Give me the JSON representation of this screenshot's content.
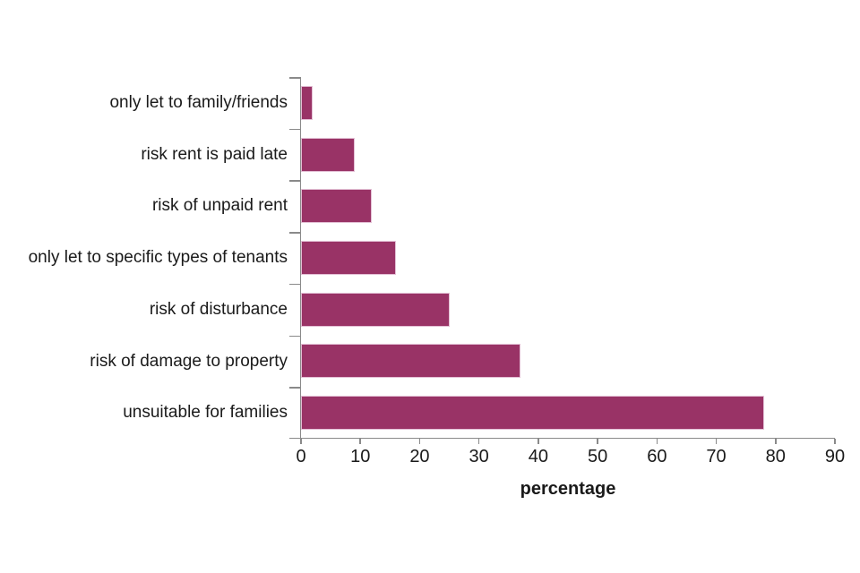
{
  "chart_data": {
    "type": "bar",
    "orientation": "horizontal",
    "title": "",
    "xlabel": "percentage",
    "ylabel": "",
    "categories": [
      "only let to family/friends",
      "risk rent is paid late",
      "risk of unpaid rent",
      "only let to specific types of tenants",
      "risk of disturbance",
      "risk of damage to property",
      "unsuitable for families"
    ],
    "values": [
      2,
      9,
      12,
      16,
      25,
      37,
      78
    ],
    "xlim": [
      0,
      90
    ],
    "xticks": [
      0,
      10,
      20,
      30,
      40,
      50,
      60,
      70,
      80,
      90
    ],
    "grid": false,
    "legend": null
  },
  "colors": {
    "bar_fill": "#993366",
    "bar_edge": "#e3c0d5",
    "axis": "#8a8a8a",
    "text": "#1a1a1a",
    "background": "#ffffff"
  }
}
